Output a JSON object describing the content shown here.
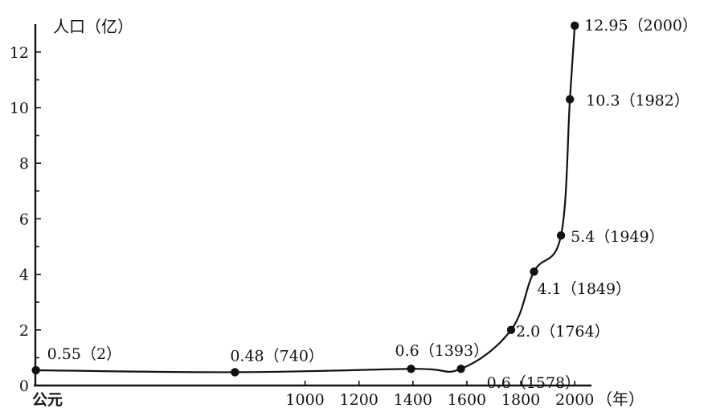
{
  "chart_data": {
    "type": "line",
    "ylabel": "人口（亿）",
    "xunit": "（年）",
    "origin_label": "公元",
    "ylim": [
      0,
      13
    ],
    "xlim": [
      0,
      2050
    ],
    "yticks": [
      0,
      2,
      4,
      6,
      8,
      10,
      12
    ],
    "xticks": [
      1000,
      1200,
      1400,
      1600,
      1800,
      2000
    ],
    "grid": false,
    "series": [
      {
        "x": [
          2,
          740,
          1393,
          1578,
          1764,
          1849,
          1949,
          1982,
          2000
        ],
        "y": [
          0.55,
          0.48,
          0.6,
          0.6,
          2.0,
          4.1,
          5.4,
          10.3,
          12.95
        ]
      }
    ],
    "point_labels": [
      "0.55（2）",
      "0.48（740）",
      "0.6（1393）",
      "0.6（1578）",
      "2.0（1764）",
      "4.1（1849）",
      "5.4（1949）",
      "10.3（1982）",
      "12.95（2000）"
    ]
  }
}
